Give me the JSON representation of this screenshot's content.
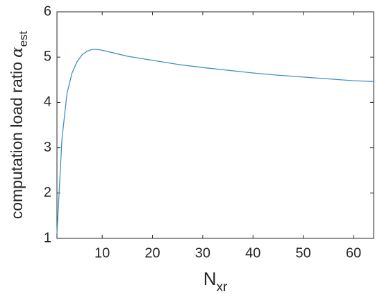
{
  "chart_data": {
    "type": "line",
    "x": [
      1,
      2,
      3,
      4,
      5,
      6,
      7,
      8,
      9,
      10,
      12,
      15,
      20,
      25,
      30,
      35,
      40,
      45,
      50,
      55,
      60,
      64
    ],
    "values": [
      1.1,
      3.2,
      4.2,
      4.65,
      4.9,
      5.05,
      5.13,
      5.17,
      5.17,
      5.15,
      5.1,
      5.02,
      4.93,
      4.84,
      4.77,
      4.71,
      4.65,
      4.6,
      4.56,
      4.52,
      4.48,
      4.46
    ],
    "color": "#3d8fc6",
    "xlim": [
      1,
      64
    ],
    "xticks": [
      10,
      20,
      30,
      40,
      50,
      60
    ],
    "ylim": [
      1,
      6
    ],
    "yticks": [
      1,
      2,
      3,
      4,
      5,
      6
    ],
    "xlabel": "N",
    "xlabel_sub": "xr",
    "ylabel": "computation load ratio",
    "ylabel_symbol": "α",
    "ylabel_sub": "est"
  }
}
